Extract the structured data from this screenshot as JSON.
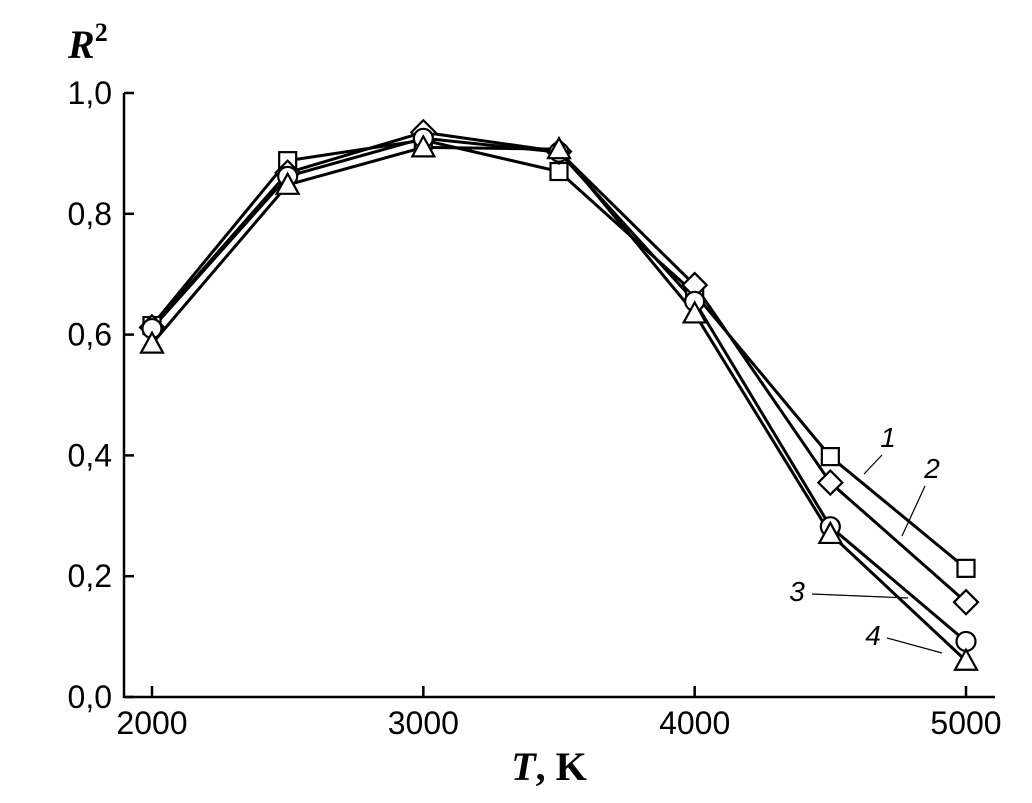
{
  "chart_data": {
    "type": "line",
    "xlabel": "T, K",
    "xlabel_italic": "T",
    "xlabel_rest": ", K",
    "ylabel": "R2",
    "ylabel_base": "R",
    "ylabel_sup": "2",
    "xlim": [
      1900,
      5100
    ],
    "ylim": [
      0.0,
      1.0
    ],
    "x_ticks": [
      2000,
      3000,
      4000,
      5000
    ],
    "x_tick_labels": [
      "2000",
      "3000",
      "4000",
      "5000"
    ],
    "y_ticks": [
      0.0,
      0.2,
      0.4,
      0.6,
      0.8,
      1.0
    ],
    "y_tick_labels": [
      "0,0",
      "0,2",
      "0,4",
      "0,6",
      "0,8",
      "1,0"
    ],
    "x": [
      2000,
      2500,
      3000,
      3500,
      4000,
      4500,
      5000
    ],
    "series": [
      {
        "label": "1",
        "marker": "square",
        "values": [
          0.615,
          0.888,
          0.922,
          0.87,
          0.668,
          0.398,
          0.213
        ]
      },
      {
        "label": "2",
        "marker": "diamond",
        "values": [
          0.612,
          0.868,
          0.935,
          0.903,
          0.682,
          0.355,
          0.157
        ]
      },
      {
        "label": "3",
        "marker": "circle",
        "values": [
          0.61,
          0.862,
          0.925,
          0.902,
          0.655,
          0.282,
          0.092
        ]
      },
      {
        "label": "4",
        "marker": "triangle",
        "values": [
          0.585,
          0.848,
          0.91,
          0.907,
          0.635,
          0.27,
          0.06
        ]
      }
    ],
    "grid": false,
    "legend": "callout labels near right end of curves"
  }
}
